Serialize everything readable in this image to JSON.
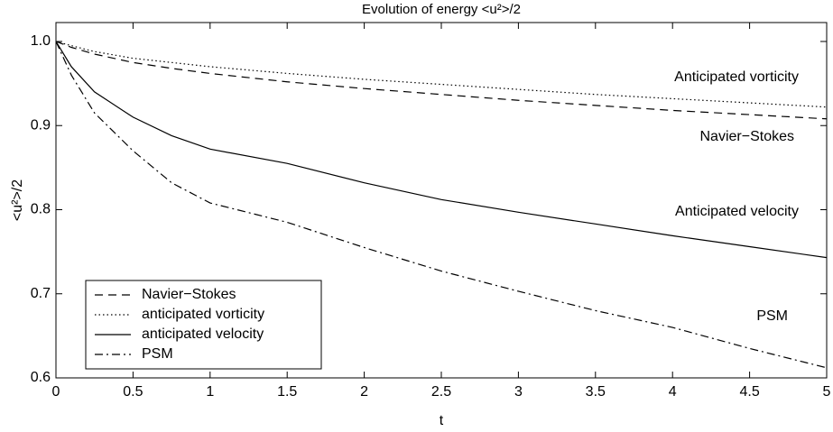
{
  "chart_data": {
    "type": "line",
    "title": "Evolution of energy <u²>/2",
    "xlabel": "t",
    "ylabel": "<u²>/2",
    "x": [
      0,
      0.1,
      0.25,
      0.5,
      0.75,
      1,
      1.5,
      2,
      2.5,
      3,
      3.5,
      4,
      4.5,
      5
    ],
    "series": [
      {
        "name": "Navier−Stokes",
        "color": "#000000",
        "dash": "dashed",
        "values": [
          1.0,
          0.993,
          0.985,
          0.975,
          0.968,
          0.962,
          0.952,
          0.944,
          0.937,
          0.93,
          0.924,
          0.918,
          0.913,
          0.908
        ]
      },
      {
        "name": "anticipated vorticity",
        "color": "#000000",
        "dash": "dotted",
        "values": [
          1.0,
          0.995,
          0.988,
          0.98,
          0.975,
          0.97,
          0.962,
          0.955,
          0.949,
          0.943,
          0.937,
          0.932,
          0.927,
          0.922
        ]
      },
      {
        "name": "anticipated velocity",
        "color": "#000000",
        "dash": "solid",
        "values": [
          1.0,
          0.97,
          0.94,
          0.91,
          0.888,
          0.872,
          0.855,
          0.832,
          0.812,
          0.797,
          0.783,
          0.769,
          0.756,
          0.743
        ]
      },
      {
        "name": "PSM",
        "color": "#000000",
        "dash": "dashdot",
        "values": [
          1.0,
          0.96,
          0.915,
          0.87,
          0.832,
          0.808,
          0.785,
          0.755,
          0.727,
          0.703,
          0.68,
          0.66,
          0.635,
          0.612
        ]
      }
    ],
    "annotations": [
      "Anticipated vorticity",
      "Navier−Stokes",
      "Anticipated velocity",
      "PSM"
    ],
    "xlim": [
      0,
      5
    ],
    "ylim": [
      0.6,
      1.0225
    ],
    "xticks": [
      0,
      0.5,
      1,
      1.5,
      2,
      2.5,
      3,
      3.5,
      4,
      4.5,
      5
    ],
    "yticks": [
      0.6,
      0.7,
      0.8,
      0.9,
      {
        "value": 1,
        "label": "1.0"
      }
    ],
    "grid": false,
    "legend": "lower left"
  }
}
